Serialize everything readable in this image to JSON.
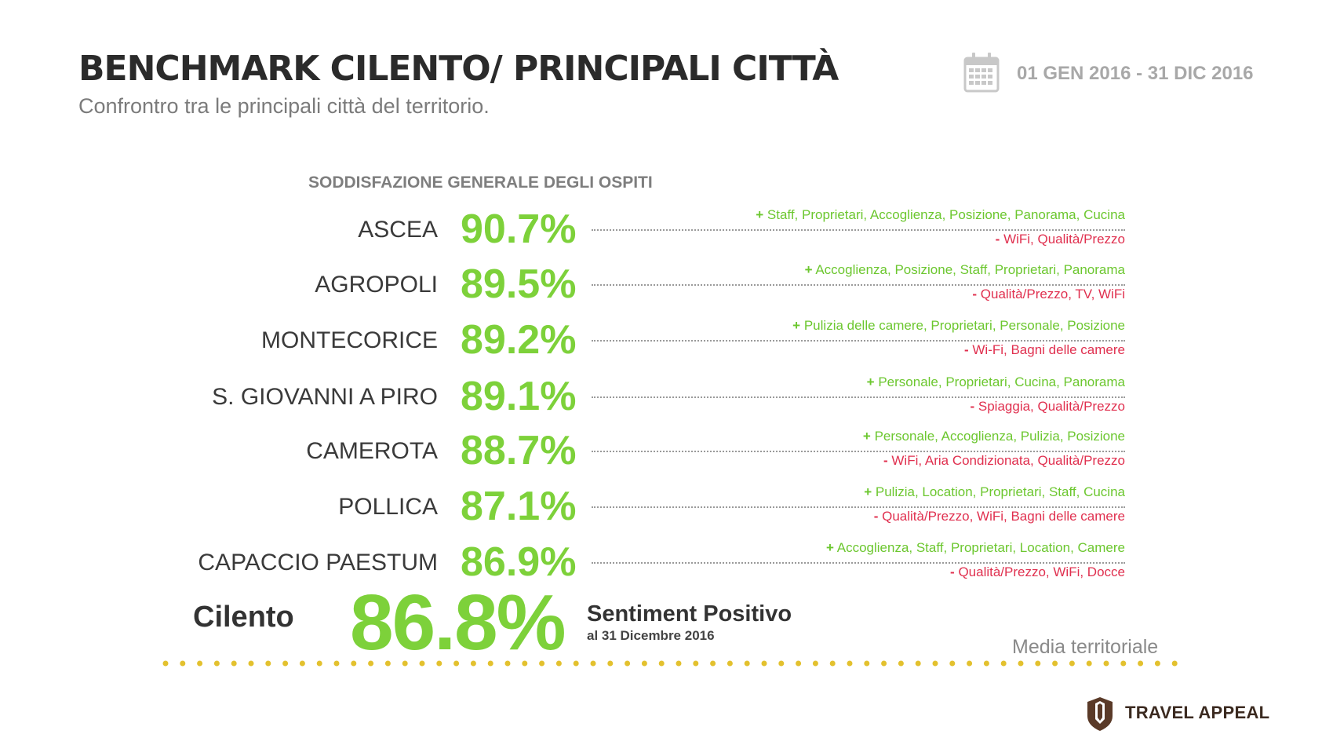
{
  "header": {
    "title": "BENCHMARK CILENTO/ PRINCIPALI CITTÀ",
    "subtitle": "Confrontro tra le principali città del territorio.",
    "date_range": "01 GEN 2016 - 31 DIC 2016",
    "calendar_icon": "calendar-icon"
  },
  "section_heading": "SODDISFAZIONE GENERALE DEGLI OSPITI",
  "rows": [
    {
      "city": "ASCEA",
      "score": "90.7%",
      "pos_sign": "+",
      "positives": "Staff, Proprietari, Accoglienza, Posizione, Panorama, Cucina",
      "neg_sign": "-",
      "negatives": "WiFi, Qualità/Prezzo"
    },
    {
      "city": "AGROPOLI",
      "score": "89.5%",
      "pos_sign": "+",
      "positives": "Accoglienza, Posizione, Staff, Proprietari, Panorama",
      "neg_sign": "-",
      "negatives": "Qualità/Prezzo, TV, WiFi"
    },
    {
      "city": "MONTECORICE",
      "score": "89.2%",
      "pos_sign": "+",
      "positives": "Pulizia delle camere, Proprietari, Personale, Posizione",
      "neg_sign": "-",
      "negatives": "Wi-Fi, Bagni delle camere"
    },
    {
      "city": "S. GIOVANNI A PIRO",
      "score": "89.1%",
      "pos_sign": "+",
      "positives": "Personale, Proprietari, Cucina, Panorama",
      "neg_sign": "-",
      "negatives": "Spiaggia, Qualità/Prezzo"
    },
    {
      "city": "CAMEROTA",
      "score": "88.7%",
      "pos_sign": "+",
      "positives": "Personale, Accoglienza, Pulizia, Posizione",
      "neg_sign": "-",
      "negatives": "WiFi, Aria Condizionata, Qualità/Prezzo"
    },
    {
      "city": "POLLICA",
      "score": "87.1%",
      "pos_sign": "+",
      "positives": "Pulizia, Location, Proprietari, Staff, Cucina",
      "neg_sign": "-",
      "negatives": "Qualità/Prezzo, WiFi, Bagni delle camere"
    },
    {
      "city": "CAPACCIO PAESTUM",
      "score": "86.9%",
      "pos_sign": "+",
      "positives": "Accoglienza, Staff, Proprietari, Location, Camere",
      "neg_sign": "-",
      "negatives": "Qualità/Prezzo, WiFi, Docce"
    }
  ],
  "summary": {
    "label": "Cilento",
    "score": "86.8%",
    "sentiment_label": "Sentiment Positivo",
    "sentiment_date": "al 31 Dicembre 2016",
    "media_label": "Media territoriale"
  },
  "brand": {
    "name": "TRAVEL APPEAL",
    "logo_icon": "travel-appeal-logo-icon"
  },
  "colors": {
    "score_green": "#7dd13a",
    "positive_green": "#6cc72f",
    "negative_red": "#e0304f",
    "dotted_gold": "#e3c12e",
    "brand_brown": "#5a3a28"
  }
}
